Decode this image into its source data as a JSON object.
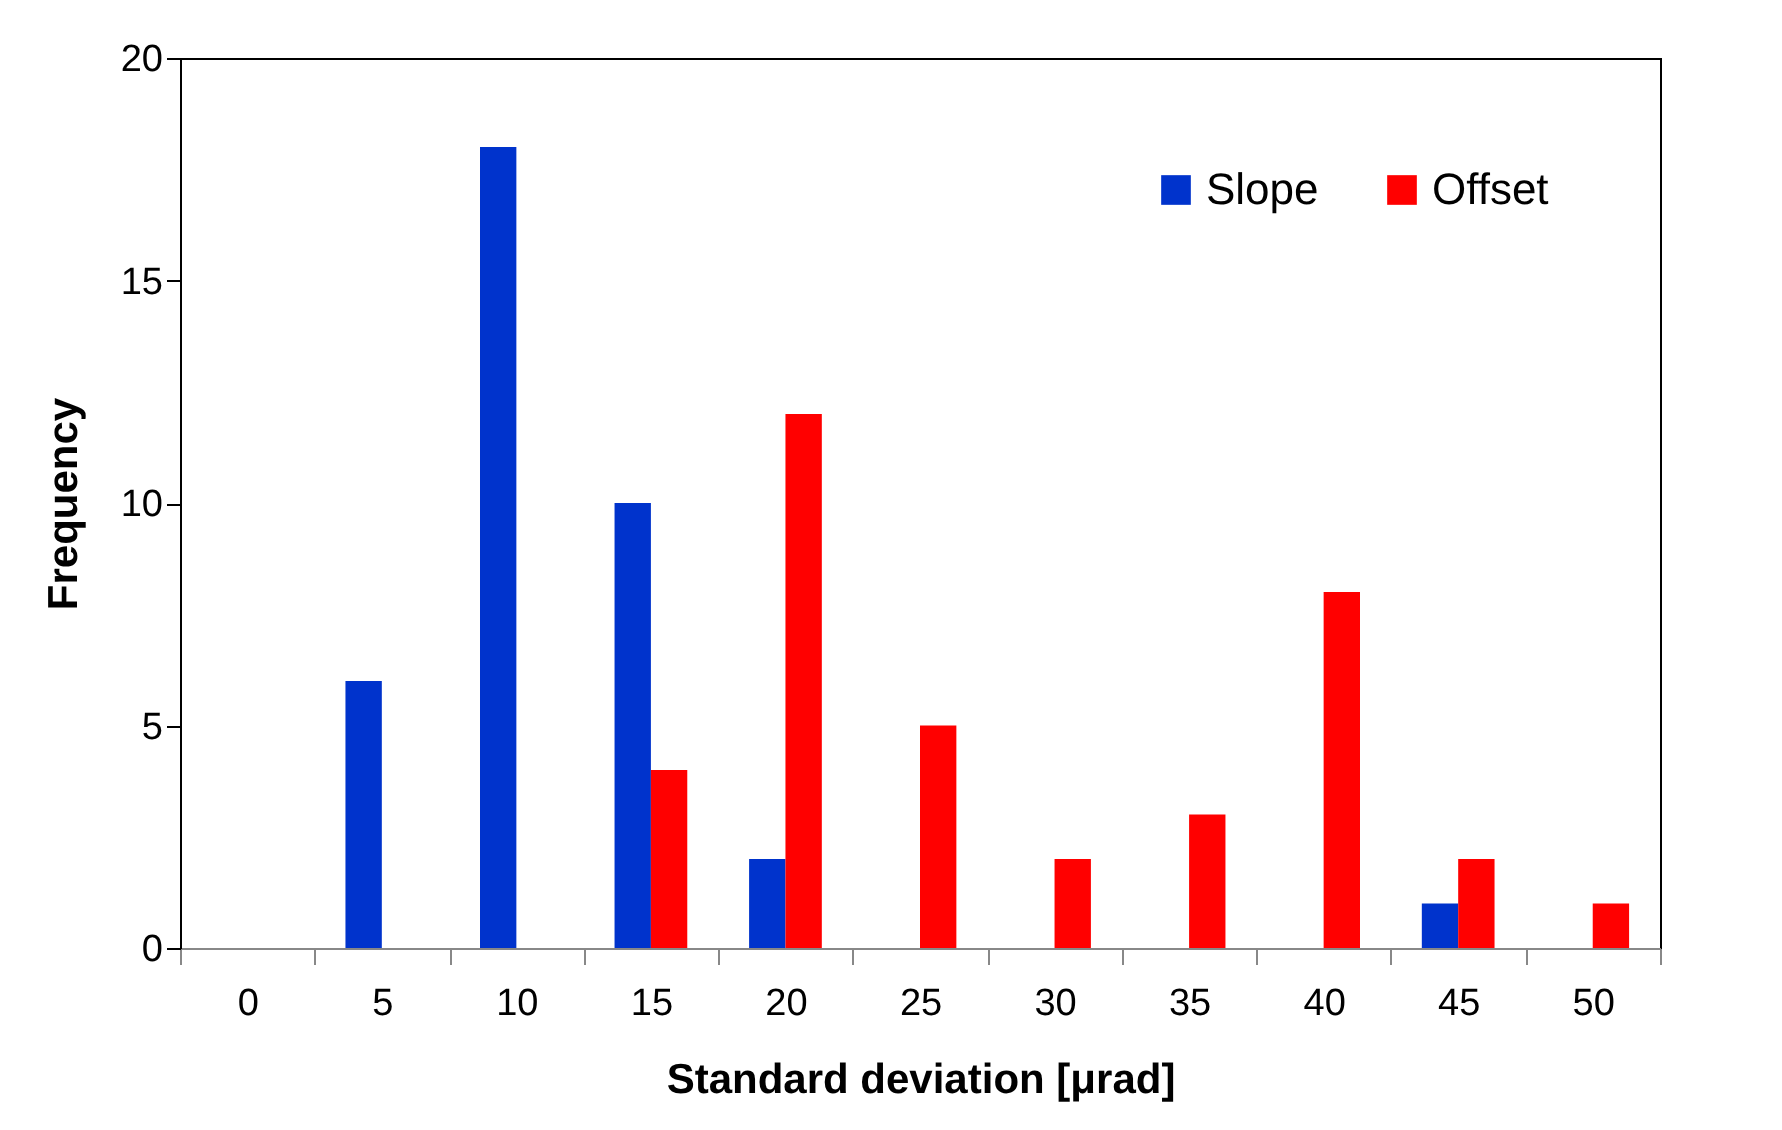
{
  "chart_data": {
    "type": "bar",
    "xlabel": "Standard deviation [μrad]",
    "ylabel": "Frequency",
    "categories": [
      "0",
      "5",
      "10",
      "15",
      "20",
      "25",
      "30",
      "35",
      "40",
      "45",
      "50"
    ],
    "series": [
      {
        "name": "Slope",
        "color": "#0033cc",
        "values": [
          0,
          6,
          18,
          10,
          2,
          0,
          0,
          0,
          0,
          1,
          0
        ]
      },
      {
        "name": "Offset",
        "color": "#ff0000",
        "values": [
          0,
          0,
          0,
          4,
          12,
          5,
          2,
          3,
          8,
          2,
          1
        ]
      }
    ],
    "ylim": [
      0,
      20
    ],
    "yticks": [
      0,
      5,
      10,
      15,
      20
    ],
    "grid": false,
    "legend": "top right"
  }
}
